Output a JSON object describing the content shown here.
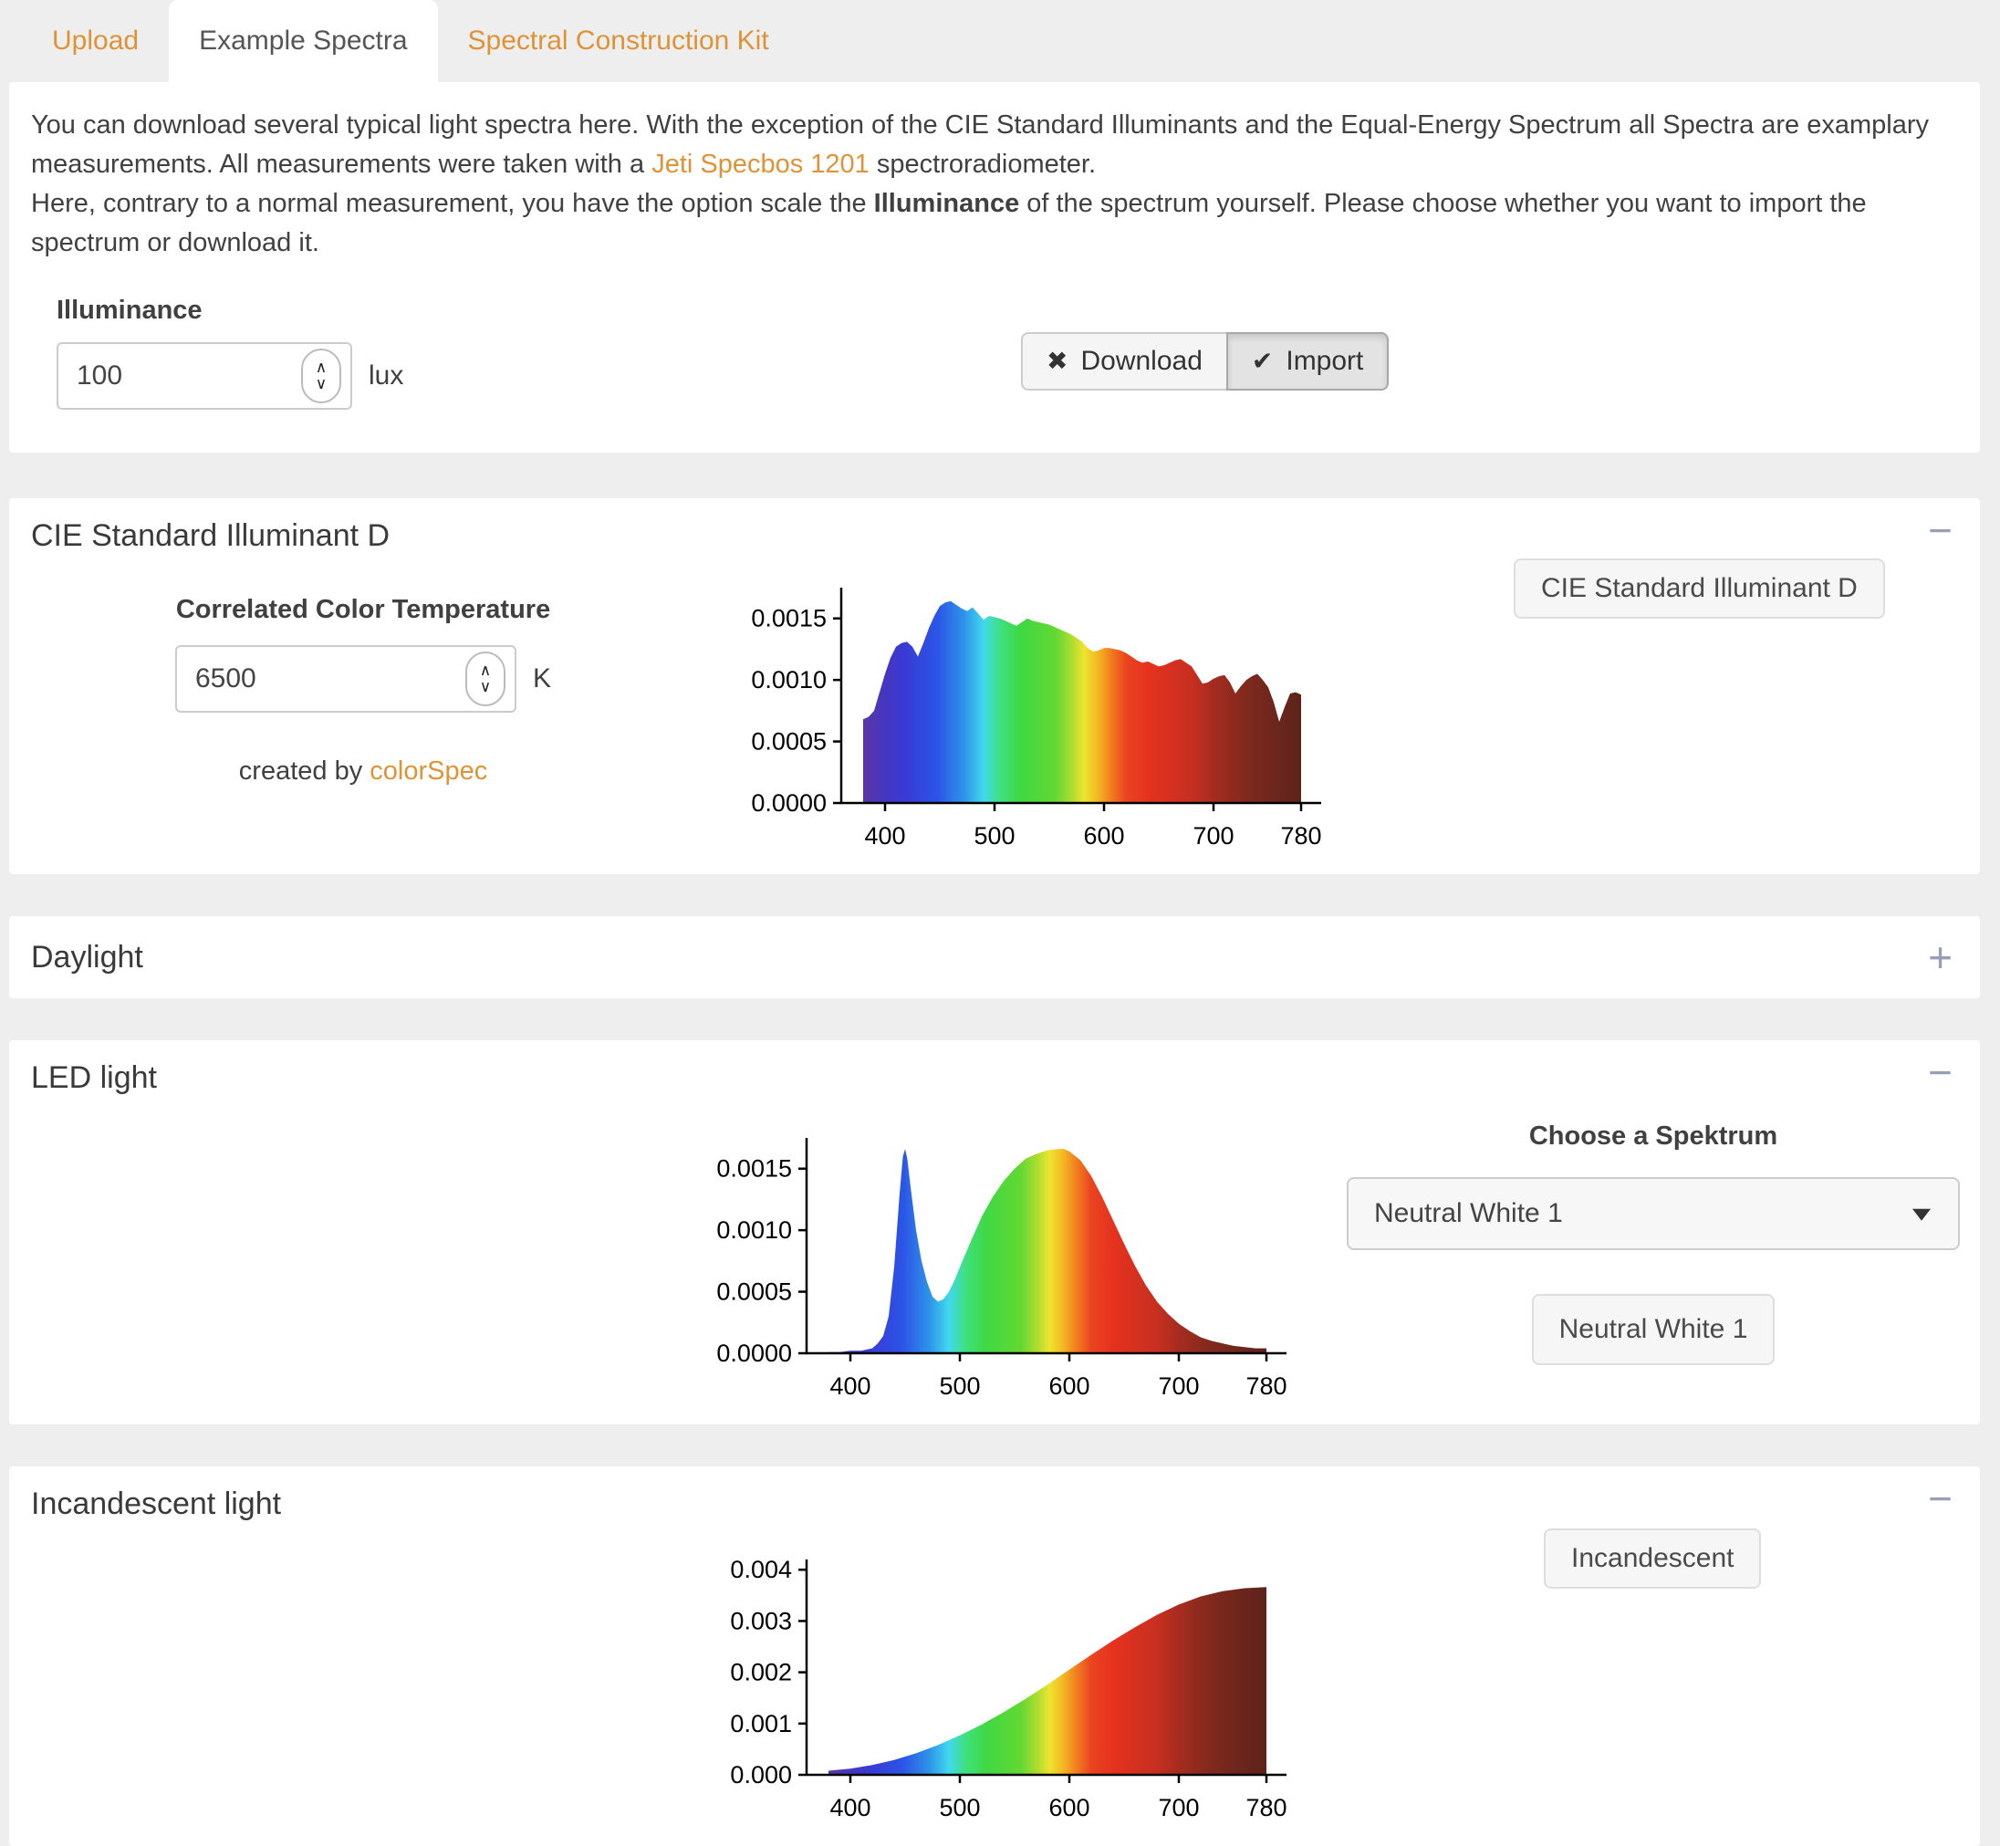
{
  "tabs": [
    {
      "label": "Upload",
      "active": false
    },
    {
      "label": "Example Spectra",
      "active": true
    },
    {
      "label": "Spectral Construction Kit",
      "active": false
    }
  ],
  "intro": {
    "p1_part1": "You can download several typical light spectra here. With the exception of the CIE Standard Illuminants and the Equal-Energy Spectrum all Spectra are examplary measurements. All measurements were taken with a ",
    "p1_link": "Jeti Specbos 1201",
    "p1_part2": " spectroradiometer.",
    "p2_part1": "Here, contrary to a normal measurement, you have the option scale the ",
    "p2_bold": "Illuminance",
    "p2_part2": " of the spectrum yourself. Please choose whether you want to import the spectrum or download it."
  },
  "illuminance": {
    "label": "Illuminance",
    "value": "100",
    "unit": "lux"
  },
  "actions": {
    "download_label": "Download",
    "import_label": "Import"
  },
  "icons": {
    "download_x": "✖",
    "import_check": "✔",
    "stepper_up": "∧",
    "stepper_down": "∨"
  },
  "panels": {
    "cie": {
      "title": "CIE Standard Illuminant D",
      "collapse_icon": "−",
      "cct_label": "Correlated Color Temperature",
      "cct_value": "6500",
      "cct_unit": "K",
      "caption_prefix": "created by ",
      "caption_link": "colorSpec",
      "button_label": "CIE Standard Illuminant D"
    },
    "daylight": {
      "title": "Daylight",
      "collapse_icon": "+"
    },
    "led": {
      "title": "LED light",
      "collapse_icon": "−",
      "choose_label": "Choose a Spektrum",
      "select_value": "Neutral White 1",
      "button_label": "Neutral White 1"
    },
    "incandescent": {
      "title": "Incandescent light",
      "collapse_icon": "−",
      "button_label": "Incandescent"
    }
  },
  "colors": {
    "accent_orange": "#dd9336",
    "collapse_icon_gray": "#97a0b3",
    "panel_background": "#ffffff",
    "page_background": "#eeeeee"
  },
  "spectrum_colors": [
    [
      0.0,
      "#5c35a4"
    ],
    [
      0.05,
      "#4636bf"
    ],
    [
      0.09,
      "#3939d4"
    ],
    [
      0.17,
      "#2b55e6"
    ],
    [
      0.23,
      "#2e93e8"
    ],
    [
      0.275,
      "#41d8ee"
    ],
    [
      0.315,
      "#3fe07c"
    ],
    [
      0.36,
      "#3fd844"
    ],
    [
      0.44,
      "#63d832"
    ],
    [
      0.48,
      "#b5dd30"
    ],
    [
      0.505,
      "#eee42f"
    ],
    [
      0.535,
      "#f3b823"
    ],
    [
      0.565,
      "#f2801f"
    ],
    [
      0.6,
      "#ea4420"
    ],
    [
      0.65,
      "#e5321f"
    ],
    [
      0.75,
      "#c72f20"
    ],
    [
      0.8,
      "#a52c1f"
    ],
    [
      0.88,
      "#7e291e"
    ],
    [
      1.0,
      "#5c231a"
    ]
  ],
  "chart_data": [
    {
      "id": "cie",
      "type": "area",
      "title": "CIE Standard Illuminant D spectrum",
      "xlabel": "",
      "ylabel": "",
      "x_range": [
        380,
        780
      ],
      "x_ticks": [
        400,
        500,
        600,
        700,
        780
      ],
      "ylim": [
        0,
        0.00175
      ],
      "y_ticks": [
        0,
        0.0005,
        0.001,
        0.0015
      ],
      "y_tick_labels": [
        "0.0000",
        "0.0005",
        "0.0010",
        "0.0015"
      ],
      "points": [
        [
          380,
          0.00068
        ],
        [
          385,
          0.0007
        ],
        [
          390,
          0.00075
        ],
        [
          395,
          0.0009
        ],
        [
          400,
          0.00105
        ],
        [
          405,
          0.00118
        ],
        [
          410,
          0.00127
        ],
        [
          415,
          0.0013
        ],
        [
          420,
          0.00131
        ],
        [
          425,
          0.00127
        ],
        [
          430,
          0.00119
        ],
        [
          435,
          0.0013
        ],
        [
          440,
          0.00142
        ],
        [
          445,
          0.00152
        ],
        [
          450,
          0.0016
        ],
        [
          455,
          0.00163
        ],
        [
          460,
          0.00164
        ],
        [
          465,
          0.00161
        ],
        [
          470,
          0.00158
        ],
        [
          475,
          0.00156
        ],
        [
          480,
          0.00159
        ],
        [
          485,
          0.00154
        ],
        [
          490,
          0.00149
        ],
        [
          495,
          0.00152
        ],
        [
          500,
          0.00151
        ],
        [
          505,
          0.0015
        ],
        [
          510,
          0.00148
        ],
        [
          515,
          0.00146
        ],
        [
          520,
          0.00144
        ],
        [
          525,
          0.00147
        ],
        [
          530,
          0.0015
        ],
        [
          535,
          0.00148
        ],
        [
          540,
          0.00147
        ],
        [
          545,
          0.00146
        ],
        [
          550,
          0.00145
        ],
        [
          555,
          0.00143
        ],
        [
          560,
          0.00141
        ],
        [
          565,
          0.00139
        ],
        [
          570,
          0.00137
        ],
        [
          575,
          0.00134
        ],
        [
          580,
          0.00131
        ],
        [
          585,
          0.00126
        ],
        [
          590,
          0.00123
        ],
        [
          595,
          0.00124
        ],
        [
          600,
          0.00126
        ],
        [
          605,
          0.00126
        ],
        [
          610,
          0.00125
        ],
        [
          615,
          0.00124
        ],
        [
          620,
          0.00122
        ],
        [
          625,
          0.00119
        ],
        [
          630,
          0.00116
        ],
        [
          635,
          0.00114
        ],
        [
          640,
          0.00115
        ],
        [
          645,
          0.00113
        ],
        [
          650,
          0.00111
        ],
        [
          655,
          0.00112
        ],
        [
          660,
          0.00114
        ],
        [
          665,
          0.00116
        ],
        [
          670,
          0.00117
        ],
        [
          675,
          0.00114
        ],
        [
          680,
          0.00111
        ],
        [
          685,
          0.00104
        ],
        [
          690,
          0.00097
        ],
        [
          695,
          0.00098
        ],
        [
          700,
          0.00101
        ],
        [
          705,
          0.00103
        ],
        [
          710,
          0.00104
        ],
        [
          715,
          0.00098
        ],
        [
          720,
          0.00089
        ],
        [
          725,
          0.00095
        ],
        [
          730,
          0.001
        ],
        [
          735,
          0.00103
        ],
        [
          740,
          0.00105
        ],
        [
          745,
          0.001
        ],
        [
          750,
          0.00094
        ],
        [
          755,
          0.00082
        ],
        [
          760,
          0.00066
        ],
        [
          765,
          0.00078
        ],
        [
          770,
          0.00089
        ],
        [
          775,
          0.0009
        ],
        [
          780,
          0.00088
        ]
      ]
    },
    {
      "id": "led",
      "type": "area",
      "title": "LED light spectrum (Neutral White 1)",
      "xlabel": "",
      "ylabel": "",
      "x_range": [
        380,
        780
      ],
      "x_ticks": [
        400,
        500,
        600,
        700,
        780
      ],
      "ylim": [
        0,
        0.00175
      ],
      "y_ticks": [
        0,
        0.0005,
        0.001,
        0.0015
      ],
      "y_tick_labels": [
        "0.0000",
        "0.0005",
        "0.0010",
        "0.0015"
      ],
      "points": [
        [
          380,
          1e-05
        ],
        [
          390,
          1e-05
        ],
        [
          400,
          2e-05
        ],
        [
          410,
          2e-05
        ],
        [
          420,
          4e-05
        ],
        [
          425,
          8e-05
        ],
        [
          430,
          0.00014
        ],
        [
          435,
          0.0003
        ],
        [
          440,
          0.0007
        ],
        [
          445,
          0.0013
        ],
        [
          448,
          0.0016
        ],
        [
          450,
          0.00166
        ],
        [
          452,
          0.00158
        ],
        [
          455,
          0.00135
        ],
        [
          460,
          0.001
        ],
        [
          465,
          0.00075
        ],
        [
          470,
          0.00058
        ],
        [
          475,
          0.00046
        ],
        [
          480,
          0.00042
        ],
        [
          485,
          0.00044
        ],
        [
          490,
          0.0005
        ],
        [
          495,
          0.00059
        ],
        [
          500,
          0.0007
        ],
        [
          510,
          0.00091
        ],
        [
          520,
          0.00111
        ],
        [
          530,
          0.00127
        ],
        [
          540,
          0.0014
        ],
        [
          550,
          0.0015
        ],
        [
          560,
          0.00158
        ],
        [
          570,
          0.00162
        ],
        [
          580,
          0.00165
        ],
        [
          590,
          0.00166
        ],
        [
          595,
          0.00166
        ],
        [
          600,
          0.00164
        ],
        [
          610,
          0.00157
        ],
        [
          620,
          0.00144
        ],
        [
          630,
          0.00127
        ],
        [
          640,
          0.00108
        ],
        [
          650,
          0.00089
        ],
        [
          660,
          0.00071
        ],
        [
          670,
          0.00055
        ],
        [
          680,
          0.00042
        ],
        [
          690,
          0.00032
        ],
        [
          700,
          0.00024
        ],
        [
          710,
          0.00018
        ],
        [
          720,
          0.00013
        ],
        [
          730,
          0.0001
        ],
        [
          740,
          8e-05
        ],
        [
          750,
          6e-05
        ],
        [
          760,
          5e-05
        ],
        [
          770,
          4e-05
        ],
        [
          780,
          4e-05
        ]
      ]
    },
    {
      "id": "incandescent",
      "type": "area",
      "title": "Incandescent light spectrum",
      "xlabel": "",
      "ylabel": "",
      "x_range": [
        380,
        780
      ],
      "x_ticks": [
        400,
        500,
        600,
        700,
        780
      ],
      "ylim": [
        0,
        0.0042
      ],
      "y_ticks": [
        0,
        0.001,
        0.002,
        0.003,
        0.004
      ],
      "y_tick_labels": [
        "0.000",
        "0.001",
        "0.002",
        "0.003",
        "0.004"
      ],
      "points": [
        [
          380,
          8e-05
        ],
        [
          400,
          0.00012
        ],
        [
          420,
          0.00019
        ],
        [
          440,
          0.00029
        ],
        [
          460,
          0.00042
        ],
        [
          480,
          0.00058
        ],
        [
          500,
          0.00077
        ],
        [
          520,
          0.00098
        ],
        [
          540,
          0.00122
        ],
        [
          560,
          0.00148
        ],
        [
          580,
          0.00176
        ],
        [
          600,
          0.00205
        ],
        [
          620,
          0.00234
        ],
        [
          640,
          0.00262
        ],
        [
          660,
          0.00288
        ],
        [
          680,
          0.00312
        ],
        [
          700,
          0.00332
        ],
        [
          720,
          0.00348
        ],
        [
          740,
          0.00358
        ],
        [
          760,
          0.00364
        ],
        [
          780,
          0.00366
        ]
      ]
    }
  ]
}
